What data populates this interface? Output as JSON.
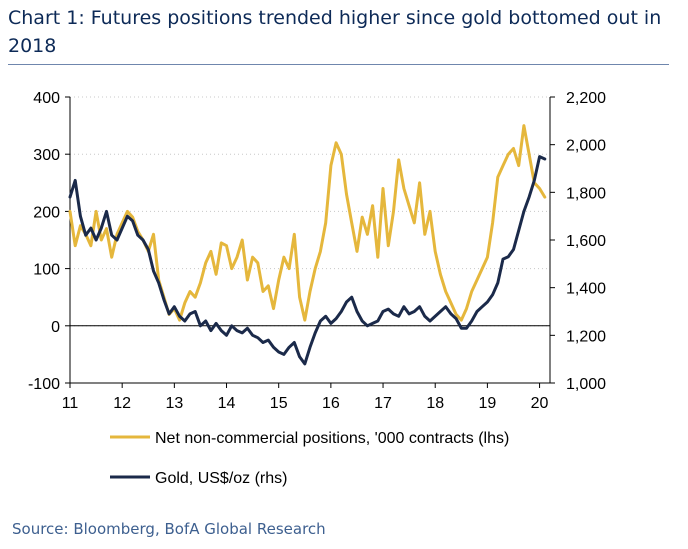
{
  "title": "Chart 1: Futures positions trended higher since gold bottomed out in 2018",
  "source": "Source: Bloomberg, BofA Global Research",
  "chart_data": {
    "type": "line",
    "xlim": [
      2011,
      2020.2
    ],
    "x_ticks": [
      "11",
      "12",
      "13",
      "14",
      "15",
      "16",
      "17",
      "18",
      "19",
      "20"
    ],
    "y_left": {
      "lim": [
        -100,
        400
      ],
      "ticks": [
        "-100",
        "0",
        "100",
        "200",
        "300",
        "400"
      ]
    },
    "y_right": {
      "lim": [
        1000,
        2200
      ],
      "ticks": [
        "1,000",
        "1,200",
        "1,400",
        "1,600",
        "1,800",
        "2,000",
        "2,200"
      ]
    },
    "grid": "horizontal dotted",
    "legend": "bottom",
    "series": [
      {
        "name": "Net non-commercial positions, '000 contracts (lhs)",
        "axis": "left",
        "color": "#e5b73c",
        "x": [
          2011.0,
          2011.1,
          2011.2,
          2011.3,
          2011.4,
          2011.5,
          2011.6,
          2011.7,
          2011.8,
          2011.9,
          2012.0,
          2012.1,
          2012.2,
          2012.3,
          2012.4,
          2012.5,
          2012.6,
          2012.7,
          2012.8,
          2012.9,
          2013.0,
          2013.1,
          2013.2,
          2013.3,
          2013.4,
          2013.5,
          2013.6,
          2013.7,
          2013.8,
          2013.9,
          2014.0,
          2014.1,
          2014.2,
          2014.3,
          2014.4,
          2014.5,
          2014.6,
          2014.7,
          2014.8,
          2014.9,
          2015.0,
          2015.1,
          2015.2,
          2015.3,
          2015.4,
          2015.5,
          2015.6,
          2015.7,
          2015.8,
          2015.9,
          2016.0,
          2016.1,
          2016.2,
          2016.3,
          2016.4,
          2016.5,
          2016.6,
          2016.7,
          2016.8,
          2016.9,
          2017.0,
          2017.1,
          2017.2,
          2017.3,
          2017.4,
          2017.5,
          2017.6,
          2017.7,
          2017.8,
          2017.9,
          2018.0,
          2018.1,
          2018.2,
          2018.3,
          2018.4,
          2018.5,
          2018.6,
          2018.7,
          2018.8,
          2018.9,
          2019.0,
          2019.1,
          2019.2,
          2019.3,
          2019.4,
          2019.5,
          2019.6,
          2019.7,
          2019.8,
          2019.9,
          2020.0,
          2020.1
        ],
        "values": [
          200,
          140,
          175,
          160,
          140,
          200,
          150,
          170,
          120,
          160,
          180,
          200,
          190,
          165,
          150,
          130,
          160,
          80,
          50,
          20,
          30,
          10,
          40,
          60,
          50,
          75,
          110,
          130,
          90,
          145,
          140,
          100,
          120,
          150,
          80,
          120,
          110,
          60,
          70,
          30,
          80,
          120,
          100,
          160,
          50,
          10,
          60,
          100,
          130,
          180,
          280,
          320,
          300,
          230,
          180,
          130,
          190,
          160,
          210,
          120,
          240,
          140,
          200,
          290,
          240,
          210,
          180,
          250,
          160,
          200,
          130,
          90,
          60,
          40,
          20,
          10,
          30,
          60,
          80,
          100,
          120,
          180,
          260,
          280,
          300,
          310,
          280,
          350,
          300,
          250,
          240,
          225
        ],
        "draw_note_removed": null
      },
      {
        "name": "Gold, US$/oz (rhs)",
        "axis": "right",
        "color": "#1b2a4a",
        "x": [
          2011.0,
          2011.1,
          2011.2,
          2011.3,
          2011.4,
          2011.5,
          2011.6,
          2011.7,
          2011.8,
          2011.9,
          2012.0,
          2012.1,
          2012.2,
          2012.3,
          2012.4,
          2012.5,
          2012.6,
          2012.7,
          2012.8,
          2012.9,
          2013.0,
          2013.1,
          2013.2,
          2013.3,
          2013.4,
          2013.5,
          2013.6,
          2013.7,
          2013.8,
          2013.9,
          2014.0,
          2014.1,
          2014.2,
          2014.3,
          2014.4,
          2014.5,
          2014.6,
          2014.7,
          2014.8,
          2014.9,
          2015.0,
          2015.1,
          2015.2,
          2015.3,
          2015.4,
          2015.5,
          2015.6,
          2015.7,
          2015.8,
          2015.9,
          2016.0,
          2016.1,
          2016.2,
          2016.3,
          2016.4,
          2016.5,
          2016.6,
          2016.7,
          2016.8,
          2016.9,
          2017.0,
          2017.1,
          2017.2,
          2017.3,
          2017.4,
          2017.5,
          2017.6,
          2017.7,
          2017.8,
          2017.9,
          2018.0,
          2018.1,
          2018.2,
          2018.3,
          2018.4,
          2018.5,
          2018.6,
          2018.7,
          2018.8,
          2018.9,
          2019.0,
          2019.1,
          2019.2,
          2019.3,
          2019.4,
          2019.5,
          2019.6,
          2019.7,
          2019.8,
          2019.9,
          2020.0,
          2020.1
        ],
        "values": [
          1780,
          1850,
          1700,
          1620,
          1650,
          1600,
          1650,
          1720,
          1620,
          1600,
          1650,
          1700,
          1680,
          1620,
          1600,
          1560,
          1470,
          1420,
          1350,
          1290,
          1320,
          1280,
          1260,
          1290,
          1300,
          1240,
          1260,
          1220,
          1250,
          1220,
          1200,
          1240,
          1220,
          1210,
          1230,
          1200,
          1190,
          1170,
          1180,
          1150,
          1130,
          1120,
          1150,
          1170,
          1110,
          1080,
          1150,
          1210,
          1260,
          1280,
          1250,
          1270,
          1300,
          1340,
          1360,
          1300,
          1260,
          1240,
          1250,
          1260,
          1300,
          1310,
          1290,
          1280,
          1320,
          1290,
          1300,
          1320,
          1280,
          1260,
          1280,
          1300,
          1320,
          1290,
          1270,
          1230,
          1230,
          1260,
          1300,
          1320,
          1340,
          1370,
          1420,
          1520,
          1530,
          1560,
          1640,
          1720,
          1780,
          1850,
          1950,
          1940
        ]
      }
    ]
  }
}
